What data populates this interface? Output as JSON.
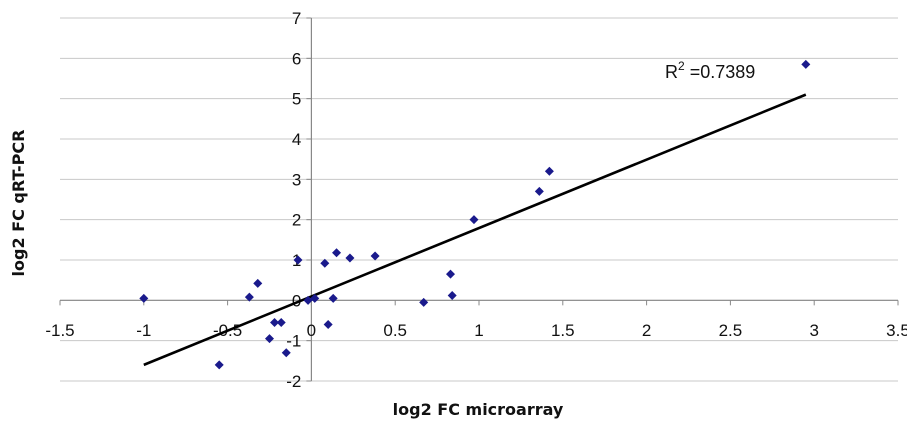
{
  "chart_data": {
    "type": "scatter",
    "xlabel": "log2 FC microarray",
    "ylabel": "log2 FC qRT-PCR",
    "xlim": [
      -1.5,
      3.5
    ],
    "ylim": [
      -2,
      7
    ],
    "xticks": [
      -1.5,
      -1,
      -0.5,
      0,
      0.5,
      1,
      1.5,
      2,
      2.5,
      3,
      3.5
    ],
    "xtick_labels": [
      "-1.5",
      "-1",
      "-0.5",
      "0",
      "0.5",
      "1",
      "1.5",
      "2",
      "2.5",
      "3",
      "3.5"
    ],
    "yticks": [
      -2,
      -1,
      0,
      1,
      2,
      3,
      4,
      5,
      6,
      7
    ],
    "ytick_labels": [
      "-2",
      "-1",
      "0",
      "1",
      "2",
      "3",
      "4",
      "5",
      "6",
      "7"
    ],
    "grid": "horizontal",
    "annotation": {
      "r2_prefix": "R",
      "r2_superscript": "2",
      "r2_value": " =0.7389"
    },
    "colors": {
      "points": "#1a1a8c",
      "trendline": "#000000",
      "grid": "#c8c8c8",
      "axis": "#888888"
    },
    "trendline": {
      "x": [
        -1.0,
        2.95
      ],
      "y": [
        -1.6,
        5.1
      ]
    },
    "series": [
      {
        "marker": "diamond",
        "points": [
          {
            "x": -1.0,
            "y": 0.05
          },
          {
            "x": -0.55,
            "y": -1.6
          },
          {
            "x": -0.37,
            "y": 0.08
          },
          {
            "x": -0.32,
            "y": 0.42
          },
          {
            "x": -0.25,
            "y": -0.95
          },
          {
            "x": -0.22,
            "y": -0.55
          },
          {
            "x": -0.18,
            "y": -0.55
          },
          {
            "x": -0.15,
            "y": -1.3
          },
          {
            "x": -0.08,
            "y": 1.0
          },
          {
            "x": -0.02,
            "y": 0.0
          },
          {
            "x": 0.02,
            "y": 0.05
          },
          {
            "x": 0.08,
            "y": 0.92
          },
          {
            "x": 0.1,
            "y": -0.6
          },
          {
            "x": 0.13,
            "y": 0.05
          },
          {
            "x": 0.15,
            "y": 1.18
          },
          {
            "x": 0.23,
            "y": 1.05
          },
          {
            "x": 0.38,
            "y": 1.1
          },
          {
            "x": 0.67,
            "y": -0.05
          },
          {
            "x": 0.83,
            "y": 0.65
          },
          {
            "x": 0.84,
            "y": 0.12
          },
          {
            "x": 0.97,
            "y": 2.0
          },
          {
            "x": 1.36,
            "y": 2.7
          },
          {
            "x": 1.42,
            "y": 3.2
          },
          {
            "x": 2.95,
            "y": 5.85
          }
        ]
      }
    ]
  }
}
